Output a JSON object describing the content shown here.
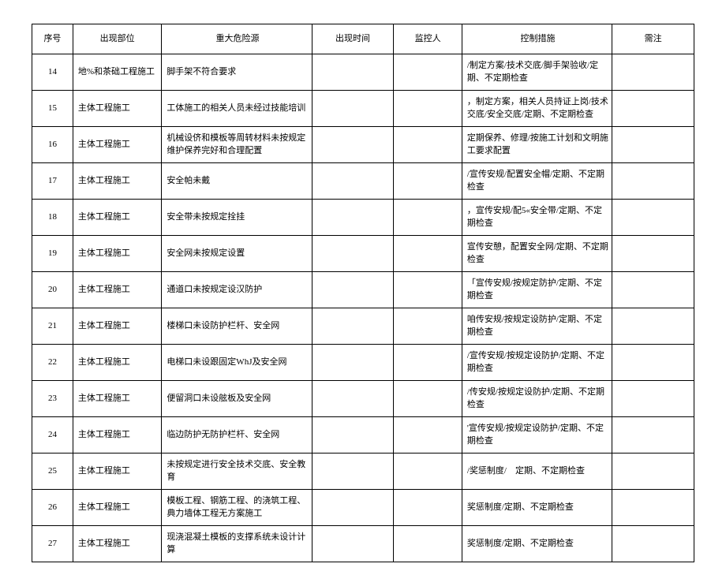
{
  "table": {
    "columns": [
      "序号",
      "出现部位",
      "重大危险源",
      "出现时间",
      "监控人",
      "控制措施",
      "需注"
    ],
    "rows": [
      {
        "seq": "14",
        "loc": "地%和茶础工程施工",
        "hazard": "脚手架不符合要求",
        "time": "",
        "monitor": "",
        "measure": "/制定方案/技术交底/脚手架验收/定期、不定期检查",
        "note": ""
      },
      {
        "seq": "15",
        "loc": "主体工程施工",
        "hazard": "工体施工的相关人员未经过技能培训",
        "time": "",
        "monitor": "",
        "measure": "，制定方案，相关人员持证上岗/技术交底/安全交底/定期、不定期检查",
        "note": ""
      },
      {
        "seq": "16",
        "loc": "主体工程施工",
        "hazard": "机械设侪和模板等周转材料未按规定维护保养完好和合理配置",
        "time": "",
        "monitor": "",
        "measure": "定期保养、修理/按施工计划和文明施工要求配置",
        "note": ""
      },
      {
        "seq": "17",
        "loc": "主体工程施工",
        "hazard": "安全帕未戴",
        "time": "",
        "monitor": "",
        "measure": "/宣传安规/配置安全帽/定期、不定期检查",
        "note": ""
      },
      {
        "seq": "18",
        "loc": "主体工程施工",
        "hazard": "安全带未按规定拴挂",
        "time": "",
        "monitor": "",
        "measure": "，宣传安规/配5«安全带/定期、不定期检查",
        "note": ""
      },
      {
        "seq": "19",
        "loc": "主体工程施工",
        "hazard": "安全网未按规定设置",
        "time": "",
        "monitor": "",
        "measure": "宣传安憩，配置安全网/定期、不定期检查",
        "note": ""
      },
      {
        "seq": "20",
        "loc": "主体工程施工",
        "hazard": "通道口未按规定设汉防护",
        "time": "",
        "monitor": "",
        "measure": "「宣传安规/按规定防护/定期、不定期检查",
        "note": ""
      },
      {
        "seq": "21",
        "loc": "主体工程施工",
        "hazard": "楼梯口未设防护栏杆、安全网",
        "time": "",
        "monitor": "",
        "measure": "咱传安规/按规定设防护/定期、不定期检查",
        "note": ""
      },
      {
        "seq": "22",
        "loc": "主体工程施工",
        "hazard": "电梯口未设跟固定WhJ及安全网",
        "time": "",
        "monitor": "",
        "measure": "/宣传安规/按规定设防护/定期、不定期检查",
        "note": ""
      },
      {
        "seq": "23",
        "loc": "主体工程施工",
        "hazard": "便留洞口未设舷板及安全网",
        "time": "",
        "monitor": "",
        "measure": "/传安规/按规定设防护/定期、不定期检查",
        "note": ""
      },
      {
        "seq": "24",
        "loc": "主体工程施工",
        "hazard": "临边防护无防护栏杆、安全网",
        "time": "",
        "monitor": "",
        "measure": "'宣传安规/按规定设防护/定期、不定期检查",
        "note": ""
      },
      {
        "seq": "25",
        "loc": "主体工程施工",
        "hazard": "未按规定进行安全技术交底、安全教育",
        "time": "",
        "monitor": "",
        "measure": "/奖惩制度/　定期、不定期检查",
        "note": ""
      },
      {
        "seq": "26",
        "loc": "主体工程施工",
        "hazard": "模板工程、钢筋工程、的浇筑工程、典力墙体工程无方案施工",
        "time": "",
        "monitor": "",
        "measure": "奖惩制度/定期、不定期检查",
        "note": ""
      },
      {
        "seq": "27",
        "loc": "主体工程施工",
        "hazard": "现浇混凝土模板的支撑系统未设计计算",
        "time": "",
        "monitor": "",
        "measure": "奖惩制度/定期、不定期检查",
        "note": ""
      }
    ]
  }
}
